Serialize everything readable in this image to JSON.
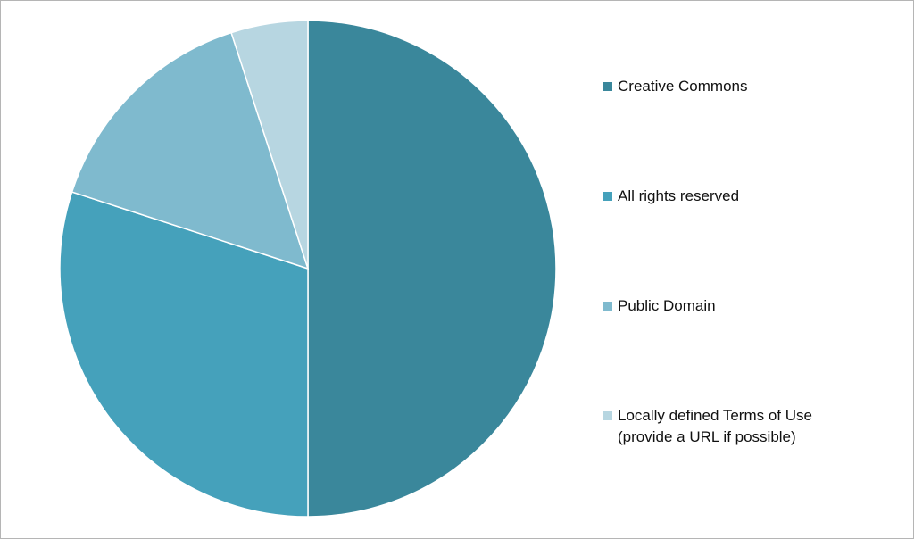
{
  "chart_data": {
    "type": "pie",
    "categories": [
      "Creative Commons",
      "All rights reserved",
      "Public Domain",
      "Locally defined Terms of Use\n(provide a URL if possible)"
    ],
    "values": [
      50,
      30,
      15,
      5
    ],
    "colors": [
      "#3a879b",
      "#45a1bb",
      "#7fbace",
      "#b7d6e1"
    ]
  }
}
